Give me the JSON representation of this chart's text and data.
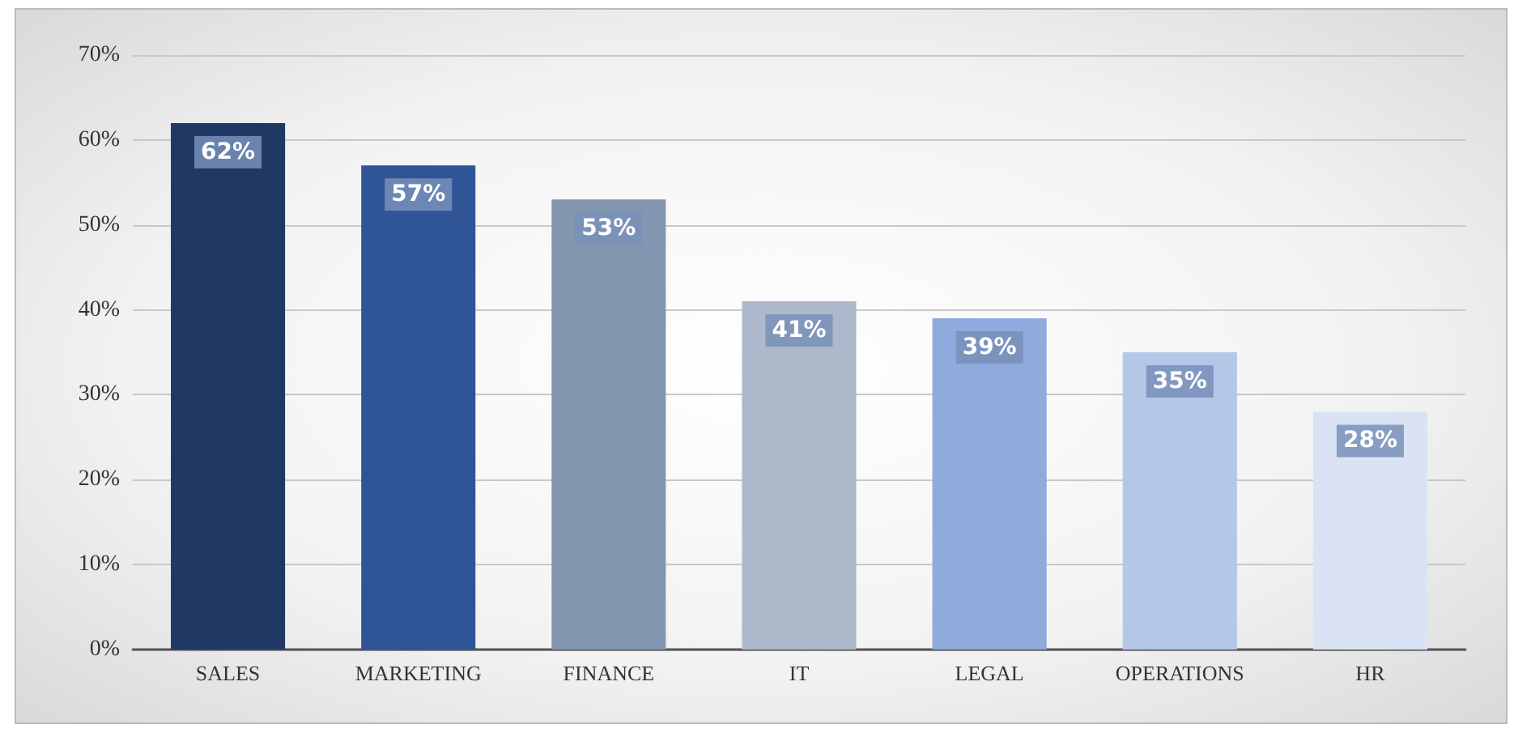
{
  "chart_data": {
    "type": "bar",
    "categories": [
      "SALES",
      "MARKETING",
      "FINANCE",
      "IT",
      "LEGAL",
      "OPERATIONS",
      "HR"
    ],
    "values": [
      62,
      57,
      53,
      41,
      39,
      35,
      28
    ],
    "colors": [
      "#1f3864",
      "#2f5597",
      "#8497b0",
      "#adb9ca",
      "#8faadc",
      "#b4c7e7",
      "#dae3f3"
    ],
    "value_labels": [
      "62%",
      "57%",
      "53%",
      "41%",
      "39%",
      "35%",
      "28%"
    ],
    "ylim": [
      0,
      70
    ],
    "yticks": [
      {
        "value": 0,
        "label": "0%"
      },
      {
        "value": 10,
        "label": "10%"
      },
      {
        "value": 20,
        "label": "20%"
      },
      {
        "value": 30,
        "label": "30%"
      },
      {
        "value": 40,
        "label": "40%"
      },
      {
        "value": 50,
        "label": "50%"
      },
      {
        "value": 60,
        "label": "60%"
      },
      {
        "value": 70,
        "label": "70%"
      }
    ],
    "grid": "y"
  }
}
